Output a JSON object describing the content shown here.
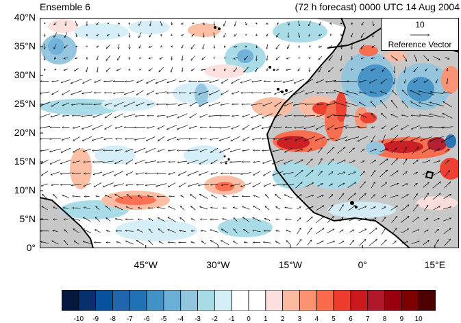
{
  "header": {
    "title_left": "Ensemble 6",
    "title_right": "(72 h forecast) 0000 UTC 14 Aug 2004"
  },
  "map": {
    "lon_range": [
      -67,
      20
    ],
    "lat_range": [
      0,
      40
    ],
    "y_ticks": [
      {
        "value": 40,
        "label": "40°N"
      },
      {
        "value": 35,
        "label": "35°N"
      },
      {
        "value": 30,
        "label": "30°N"
      },
      {
        "value": 25,
        "label": "25°N"
      },
      {
        "value": 20,
        "label": "20°N"
      },
      {
        "value": 15,
        "label": "15°N"
      },
      {
        "value": 10,
        "label": "10°N"
      },
      {
        "value": 5,
        "label": "5°N"
      },
      {
        "value": 0,
        "label": "0°"
      }
    ],
    "x_ticks": [
      {
        "value": -45,
        "label": "45°W"
      },
      {
        "value": -30,
        "label": "30°W"
      },
      {
        "value": -15,
        "label": "15°W"
      },
      {
        "value": 0,
        "label": "0°"
      },
      {
        "value": 15,
        "label": "15°E"
      }
    ],
    "land_color": "#c8c8c8",
    "coast_color": "#000000"
  },
  "reference_vector": {
    "magnitude": "10",
    "label": "Reference Vector"
  },
  "colorbar": {
    "levels": [
      "-10",
      "-9",
      "-8",
      "-7",
      "-6",
      "-5",
      "-4",
      "-3",
      "-2",
      "-1",
      "0",
      "1",
      "2",
      "3",
      "4",
      "5",
      "6",
      "7",
      "8",
      "9",
      "10"
    ],
    "colors": [
      "#05193f",
      "#08306b",
      "#08519c",
      "#2166ac",
      "#2171b5",
      "#4292c6",
      "#6baed6",
      "#92c5de",
      "#a6dbe6",
      "#d4eef8",
      "#ffffff",
      "#ffffff",
      "#fde0dd",
      "#fcbba1",
      "#fc9272",
      "#fb6a4a",
      "#ef3b2c",
      "#cb181d",
      "#b2182b",
      "#99000d",
      "#7f0000",
      "#4d0000"
    ]
  }
}
